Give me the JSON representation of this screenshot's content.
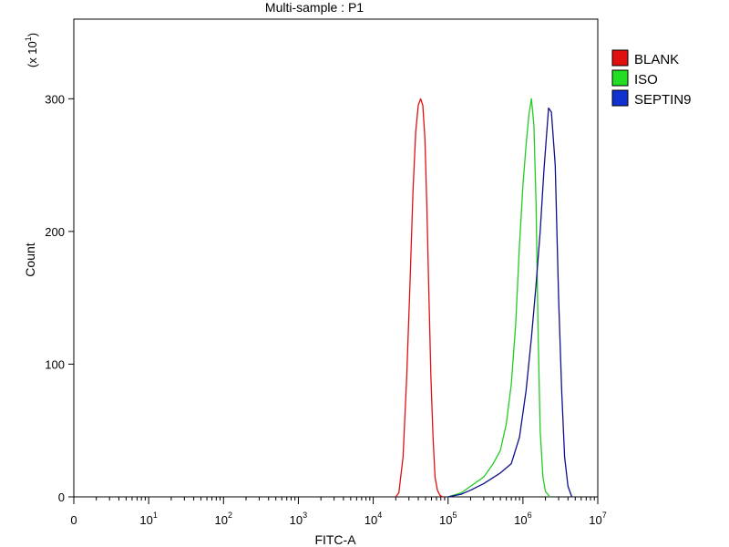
{
  "chart_data": {
    "type": "line",
    "title": "Multi-sample : P1",
    "xlabel": "FITC-A",
    "ylabel": "Count",
    "y_multiplier": {
      "prefix": "(x 10",
      "exponent": "1",
      "suffix": ")"
    },
    "x_scale": "log",
    "xlim": [
      1,
      10000000
    ],
    "ylim": [
      0,
      36
    ],
    "y_ticks": [
      {
        "value": 0,
        "label": "0"
      },
      {
        "value": 10,
        "label": "100"
      },
      {
        "value": 20,
        "label": "200"
      },
      {
        "value": 30,
        "label": "300"
      }
    ],
    "x_ticks": [
      {
        "value": 1,
        "base": "0",
        "exp": ""
      },
      {
        "value": 10,
        "base": "10",
        "exp": "1"
      },
      {
        "value": 100,
        "base": "10",
        "exp": "2"
      },
      {
        "value": 1000,
        "base": "10",
        "exp": "3"
      },
      {
        "value": 10000,
        "base": "10",
        "exp": "4"
      },
      {
        "value": 100000,
        "base": "10",
        "exp": "5"
      },
      {
        "value": 1000000,
        "base": "10",
        "exp": "6"
      },
      {
        "value": 10000000,
        "base": "10",
        "exp": "7"
      }
    ],
    "legend_position": "right",
    "grid": false,
    "series": [
      {
        "name": "BLANK",
        "color": "#e01010",
        "legend_color": "#e01010",
        "x": [
          20000,
          22000,
          25000,
          28000,
          31000,
          34000,
          37000,
          40000,
          43000,
          46000,
          49000,
          52000,
          55000,
          59000,
          63000,
          67000,
          72000,
          78000,
          85000
        ],
        "y": [
          0,
          0.3,
          3,
          9,
          16,
          23,
          27.5,
          29.5,
          30,
          29.5,
          27,
          22,
          16,
          9,
          4.5,
          1.5,
          0.5,
          0.1,
          0
        ]
      },
      {
        "name": "ISO",
        "color": "#22cc22",
        "legend_color": "#22dd22",
        "x": [
          100000,
          150000,
          200000,
          300000,
          400000,
          500000,
          600000,
          700000,
          800000,
          900000,
          1000000,
          1100000,
          1200000,
          1300000,
          1400000,
          1500000,
          1600000,
          1700000,
          1850000,
          2000000,
          2300000
        ],
        "y": [
          0,
          0.3,
          0.8,
          1.5,
          2.5,
          3.5,
          5.5,
          8.5,
          13,
          19,
          23.5,
          26.5,
          28.8,
          30,
          28,
          22,
          12,
          5,
          1.5,
          0.4,
          0
        ]
      },
      {
        "name": "SEPTIN9",
        "color": "#10108a",
        "legend_color": "#1030d0",
        "x": [
          100000,
          150000,
          200000,
          300000,
          500000,
          700000,
          900000,
          1100000,
          1300000,
          1500000,
          1700000,
          1900000,
          2050000,
          2200000,
          2400000,
          2700000,
          3000000,
          3300000,
          3600000,
          4000000,
          4500000
        ],
        "y": [
          0,
          0.2,
          0.5,
          1.0,
          1.8,
          2.5,
          4.5,
          8,
          12,
          16,
          20,
          24.5,
          27,
          29.3,
          29,
          25,
          15,
          8,
          3,
          0.8,
          0
        ]
      }
    ]
  }
}
